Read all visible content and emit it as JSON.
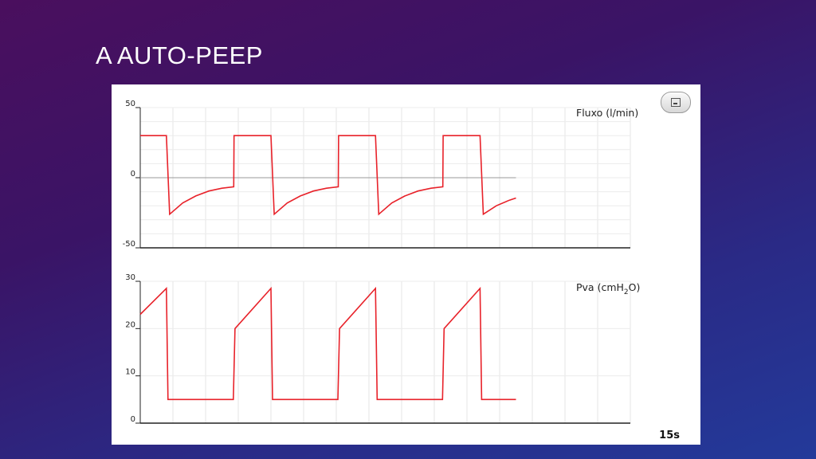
{
  "slide": {
    "title": "A AUTO-PEEP"
  },
  "panel": {
    "time_label": "15s"
  },
  "chart_data": [
    {
      "type": "line",
      "title": "Fluxo (l/min)",
      "ylabel": "",
      "xlabel": "",
      "ylim": [
        -50,
        50
      ],
      "y_ticks": [
        "50",
        "0",
        "-50"
      ],
      "y_tick_values": [
        50,
        0,
        -50
      ],
      "grid": true,
      "series": [
        {
          "name": "",
          "color": "#e8222a",
          "points": [
            [
              0,
              30
            ],
            [
              0.8,
              30
            ],
            [
              0.9,
              -26
            ],
            [
              1.3,
              -18
            ],
            [
              1.7,
              -13
            ],
            [
              2.1,
              -9.5
            ],
            [
              2.5,
              -7.5
            ],
            [
              2.86,
              -6.5
            ],
            [
              2.87,
              30
            ],
            [
              4.0,
              30
            ],
            [
              4.1,
              -26
            ],
            [
              4.5,
              -18
            ],
            [
              4.9,
              -13
            ],
            [
              5.3,
              -9.5
            ],
            [
              5.7,
              -7.5
            ],
            [
              6.06,
              -6.5
            ],
            [
              6.07,
              30
            ],
            [
              7.2,
              30
            ],
            [
              7.3,
              -26
            ],
            [
              7.7,
              -18
            ],
            [
              8.1,
              -13
            ],
            [
              8.5,
              -9.5
            ],
            [
              8.9,
              -7.5
            ],
            [
              9.26,
              -6.5
            ],
            [
              9.27,
              30
            ],
            [
              10.4,
              30
            ],
            [
              10.5,
              -26
            ],
            [
              10.9,
              -20
            ],
            [
              11.3,
              -16
            ],
            [
              11.5,
              -14.5
            ]
          ]
        }
      ]
    },
    {
      "type": "line",
      "title": "Pva (cmH2O)",
      "title_base": "Pva (cmH",
      "title_sub": "2",
      "title_end": "O)",
      "ylabel": "",
      "xlabel": "15s",
      "ylim": [
        0,
        30
      ],
      "y_ticks": [
        "30",
        "20",
        "10",
        "0"
      ],
      "y_tick_values": [
        30,
        20,
        10,
        0
      ],
      "grid": true,
      "series": [
        {
          "name": "",
          "color": "#e8222a",
          "points": [
            [
              0,
              23
            ],
            [
              0.8,
              28.5
            ],
            [
              0.85,
              5
            ],
            [
              2.85,
              5
            ],
            [
              2.9,
              20
            ],
            [
              4.0,
              28.5
            ],
            [
              4.05,
              5
            ],
            [
              6.05,
              5
            ],
            [
              6.1,
              20
            ],
            [
              7.2,
              28.5
            ],
            [
              7.25,
              5
            ],
            [
              9.25,
              5
            ],
            [
              9.3,
              20
            ],
            [
              10.4,
              28.5
            ],
            [
              10.45,
              5
            ],
            [
              11.5,
              5
            ]
          ]
        }
      ]
    }
  ]
}
